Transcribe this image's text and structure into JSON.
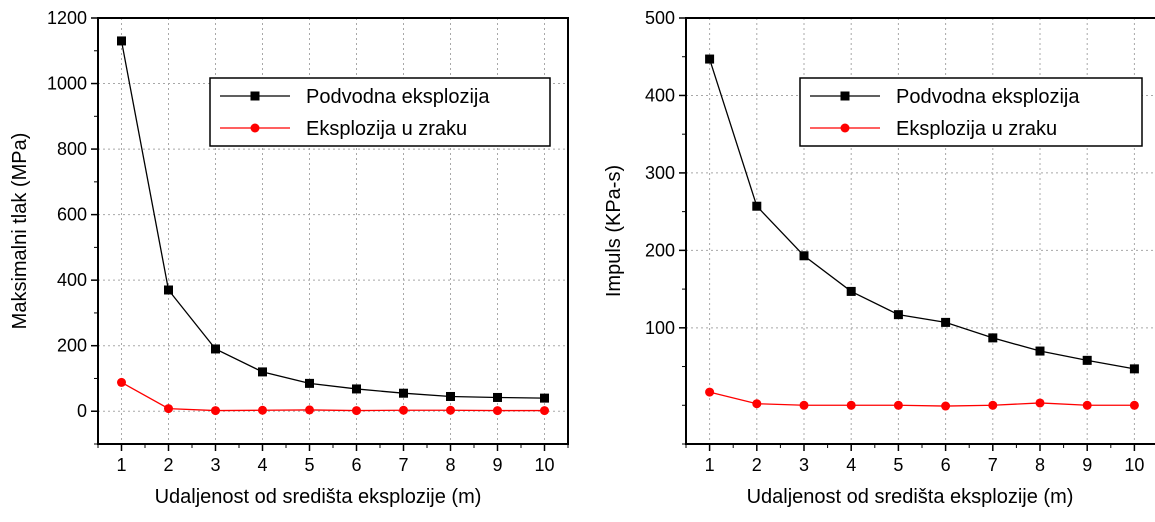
{
  "chart_data": [
    {
      "type": "line",
      "title": "",
      "xlabel": "Udaljenost od središta eksplozije (m)",
      "ylabel": "Maksimalni tlak (MPa)",
      "x": [
        1,
        2,
        3,
        4,
        5,
        6,
        7,
        8,
        9,
        10
      ],
      "xlim": [
        0.5,
        10.5
      ],
      "ylim": [
        -100,
        1200
      ],
      "x_ticks": [
        "1",
        "2",
        "3",
        "4",
        "5",
        "6",
        "7",
        "8",
        "9",
        "10"
      ],
      "y_ticks": [
        0,
        200,
        400,
        600,
        800,
        1000,
        1200
      ],
      "y_tick_labels": [
        "0",
        "200",
        "400",
        "600",
        "800",
        "1000",
        "1200"
      ],
      "grid": true,
      "legend_position": "top-right",
      "series": [
        {
          "name": "Podvodna eksplozija",
          "marker": "square",
          "color": "#000000",
          "values": [
            1130,
            370,
            190,
            120,
            85,
            68,
            55,
            45,
            42,
            40
          ]
        },
        {
          "name": "Eksplozija u zraku",
          "marker": "circle",
          "color": "#ff0000",
          "values": [
            88,
            8,
            2,
            3,
            4,
            2,
            3,
            3,
            2,
            2
          ]
        }
      ]
    },
    {
      "type": "line",
      "title": "",
      "xlabel": "Udaljenost od središta eksplozije (m)",
      "ylabel": "Impuls (KPa-s)",
      "x": [
        1,
        2,
        3,
        4,
        5,
        6,
        7,
        8,
        9,
        10
      ],
      "xlim": [
        0.5,
        10.5
      ],
      "ylim": [
        -50,
        500
      ],
      "x_ticks": [
        "1",
        "2",
        "3",
        "4",
        "5",
        "6",
        "7",
        "8",
        "9",
        "10"
      ],
      "y_ticks": [
        100,
        200,
        300,
        400,
        500
      ],
      "y_tick_labels": [
        "100",
        "200",
        "300",
        "400",
        "500"
      ],
      "grid": true,
      "legend_position": "top-right",
      "series": [
        {
          "name": "Podvodna eksplozija",
          "marker": "square",
          "color": "#000000",
          "values": [
            447,
            257,
            193,
            147,
            117,
            107,
            87,
            70,
            58,
            47
          ]
        },
        {
          "name": "Eksplozija u zraku",
          "marker": "circle",
          "color": "#ff0000",
          "values": [
            17,
            2,
            0,
            0,
            0,
            -1,
            0,
            3,
            0,
            0
          ]
        }
      ]
    }
  ]
}
